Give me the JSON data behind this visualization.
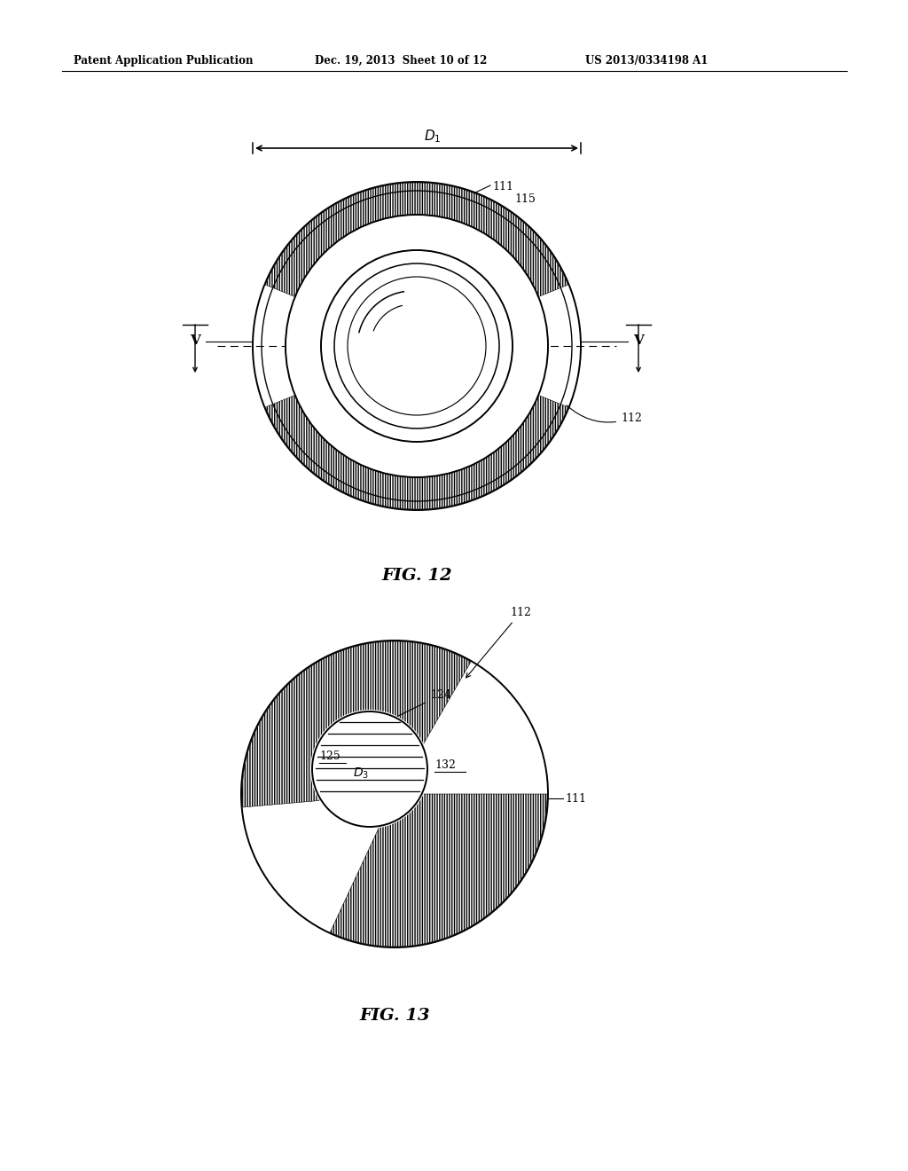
{
  "bg_color": "#ffffff",
  "header_left": "Patent Application Publication",
  "header_mid": "Dec. 19, 2013  Sheet 10 of 12",
  "header_right": "US 2013/0334198 A1",
  "fig12_caption": "FIG. 12",
  "fig13_caption": "FIG. 13",
  "line_color": "#000000"
}
